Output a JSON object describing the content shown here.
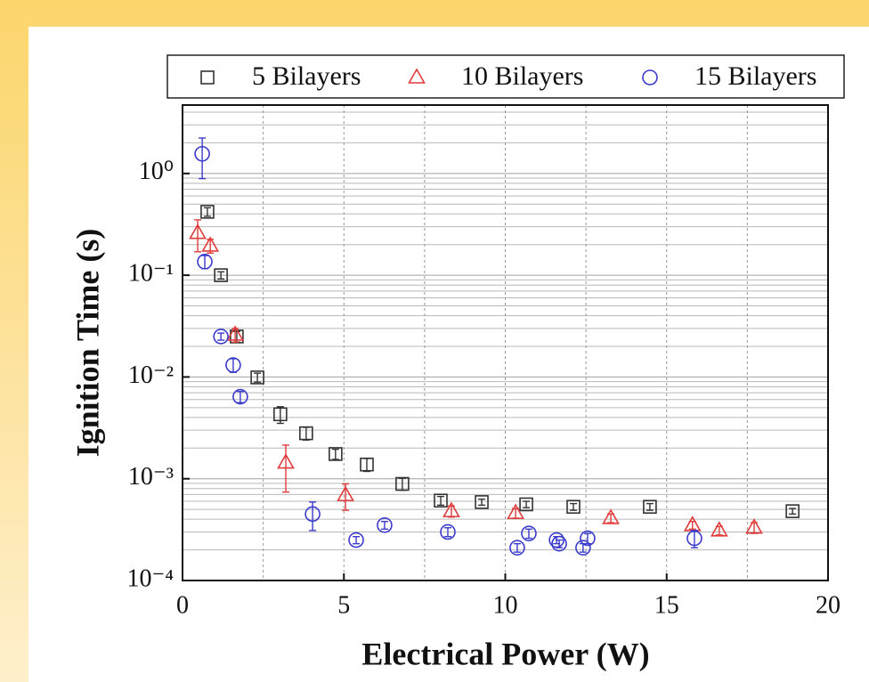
{
  "chart_data": {
    "type": "scatter",
    "xlabel": "Electrical Power (W)",
    "ylabel": "Ignition Time (s)",
    "xlim": [
      0,
      20
    ],
    "xticks": [
      0,
      5,
      10,
      15,
      20
    ],
    "ylim": [
      0.0001,
      4.7
    ],
    "ylog": true,
    "yticks": [
      {
        "value": 0.0001,
        "label": "10⁻⁴"
      },
      {
        "value": 0.001,
        "label": "10⁻³"
      },
      {
        "value": 0.01,
        "label": "10⁻²"
      },
      {
        "value": 0.1,
        "label": "10⁻¹"
      },
      {
        "value": 1,
        "label": "10⁰"
      }
    ],
    "grid": true,
    "legend": "top",
    "series": [
      {
        "name": "5 Bilayers",
        "marker": "square",
        "color": "#333333",
        "x": [
          0.77,
          1.19,
          1.68,
          2.32,
          3.03,
          3.83,
          4.74,
          5.71,
          6.81,
          8.0,
          9.27,
          10.65,
          12.11,
          14.48,
          18.9
        ],
        "values": [
          0.42,
          0.1,
          0.025,
          0.0099,
          0.0043,
          0.0028,
          0.00175,
          0.00138,
          0.00089,
          0.00061,
          0.00059,
          0.00056,
          0.00053,
          0.00053,
          0.00048
        ],
        "errors": [
          0.04,
          0.008,
          0.003,
          0.001,
          0.0008,
          0.0004,
          0.0002,
          0.0002,
          0.00012,
          6e-05,
          4e-05,
          4e-05,
          4e-05,
          4e-05,
          3e-05
        ]
      },
      {
        "name": "10 Bilayers",
        "marker": "triangle",
        "color": "#e03c3c",
        "x": [
          0.47,
          0.86,
          1.63,
          3.2,
          5.05,
          8.33,
          10.32,
          13.27,
          15.8,
          16.63,
          17.71
        ],
        "values": [
          0.26,
          0.195,
          0.026,
          0.00144,
          0.00069,
          0.00048,
          0.00046,
          0.00041,
          0.00035,
          0.00031,
          0.00033
        ],
        "errors": [
          0.09,
          0.03,
          0.004,
          0.0007,
          0.0002,
          6e-05,
          5e-05,
          4e-05,
          3e-05,
          3e-05,
          4e-05
        ]
      },
      {
        "name": "15 Bilayers",
        "marker": "circle",
        "color": "#3a3acc",
        "x": [
          0.61,
          0.69,
          1.19,
          1.57,
          1.79,
          4.03,
          5.38,
          6.26,
          8.22,
          10.37,
          10.73,
          11.59,
          11.67,
          12.41,
          12.55,
          15.86
        ],
        "values": [
          1.56,
          0.136,
          0.025,
          0.0131,
          0.0064,
          0.00045,
          0.00025,
          0.00035,
          0.0003,
          0.00021,
          0.00029,
          0.00025,
          0.00023,
          0.00021,
          0.00026,
          0.00026
        ],
        "errors": [
          0.67,
          0.02,
          0.002,
          0.002,
          0.0008,
          0.00014,
          2e-05,
          3e-05,
          3e-05,
          2e-05,
          3e-05,
          2e-05,
          2e-05,
          2e-05,
          3e-05,
          5e-05
        ]
      }
    ]
  }
}
